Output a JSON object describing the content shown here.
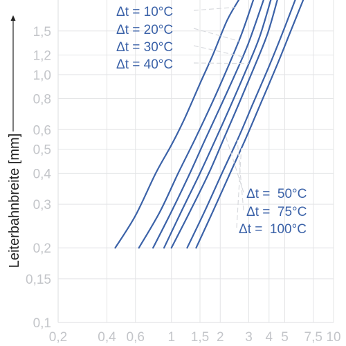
{
  "chart_data": {
    "type": "line",
    "title": "",
    "xlabel": "",
    "ylabel": "Leiterbahnbreite [mm]",
    "x_scale": "log",
    "y_scale": "log",
    "xlim": [
      0.2,
      10
    ],
    "ylim": [
      0.1,
      2
    ],
    "grid": true,
    "x_ticks": [
      {
        "value": 0.2,
        "label": "0,2"
      },
      {
        "value": 0.4,
        "label": "0,4"
      },
      {
        "value": 0.6,
        "label": "0,6"
      },
      {
        "value": 1,
        "label": "1"
      },
      {
        "value": 1.5,
        "label": "1,5"
      },
      {
        "value": 2,
        "label": "2"
      },
      {
        "value": 3,
        "label": "3"
      },
      {
        "value": 4,
        "label": "4"
      },
      {
        "value": 5,
        "label": "5"
      },
      {
        "value": 7.5,
        "label": "7,5"
      },
      {
        "value": 10,
        "label": "10"
      }
    ],
    "y_ticks": [
      {
        "value": 0.1,
        "label": "0,1"
      },
      {
        "value": 0.15,
        "label": "0,15"
      },
      {
        "value": 0.2,
        "label": "0,2"
      },
      {
        "value": 0.3,
        "label": "0,3"
      },
      {
        "value": 0.4,
        "label": "0,4"
      },
      {
        "value": 0.5,
        "label": "0,5"
      },
      {
        "value": 0.6,
        "label": "0,6"
      },
      {
        "value": 0.8,
        "label": "0,8"
      },
      {
        "value": 1.0,
        "label": "1,0"
      },
      {
        "value": 1.2,
        "label": "1,2"
      },
      {
        "value": 1.5,
        "label": "1,5"
      }
    ],
    "series": [
      {
        "label": "Δt = 10°C",
        "points": [
          [
            0.45,
            0.2
          ],
          [
            0.6,
            0.27
          ],
          [
            0.8,
            0.4
          ],
          [
            1.0,
            0.52
          ],
          [
            1.2,
            0.66
          ],
          [
            1.5,
            0.92
          ],
          [
            1.8,
            1.2
          ],
          [
            2.2,
            1.65
          ],
          [
            2.6,
            2.0
          ]
        ]
      },
      {
        "label": "Δt = 20°C",
        "points": [
          [
            0.63,
            0.2
          ],
          [
            0.85,
            0.28
          ],
          [
            1.1,
            0.4
          ],
          [
            1.4,
            0.55
          ],
          [
            1.8,
            0.78
          ],
          [
            2.2,
            1.05
          ],
          [
            2.7,
            1.45
          ],
          [
            3.2,
            2.0
          ]
        ]
      },
      {
        "label": "Δt = 30°C",
        "points": [
          [
            0.77,
            0.2
          ],
          [
            1.0,
            0.28
          ],
          [
            1.3,
            0.4
          ],
          [
            1.6,
            0.54
          ],
          [
            2.0,
            0.74
          ],
          [
            2.5,
            1.02
          ],
          [
            3.0,
            1.35
          ],
          [
            3.7,
            2.0
          ]
        ]
      },
      {
        "label": "Δt = 40°C",
        "points": [
          [
            0.9,
            0.2
          ],
          [
            1.15,
            0.28
          ],
          [
            1.5,
            0.4
          ],
          [
            1.9,
            0.56
          ],
          [
            2.3,
            0.74
          ],
          [
            2.9,
            1.05
          ],
          [
            3.5,
            1.42
          ],
          [
            4.1,
            2.0
          ]
        ]
      },
      {
        "label": "Δt = 50°C",
        "points": [
          [
            1.0,
            0.2
          ],
          [
            1.3,
            0.28
          ],
          [
            1.7,
            0.4
          ],
          [
            2.1,
            0.55
          ],
          [
            2.6,
            0.76
          ],
          [
            3.2,
            1.05
          ],
          [
            3.9,
            1.45
          ],
          [
            4.5,
            2.0
          ]
        ]
      },
      {
        "label": "Δt = 75°C",
        "points": [
          [
            1.25,
            0.2
          ],
          [
            1.6,
            0.28
          ],
          [
            2.05,
            0.4
          ],
          [
            2.6,
            0.56
          ],
          [
            3.2,
            0.77
          ],
          [
            4.0,
            1.08
          ],
          [
            4.8,
            1.45
          ],
          [
            5.8,
            2.0
          ]
        ]
      },
      {
        "label": "Δt = 100°C",
        "points": [
          [
            1.42,
            0.2
          ],
          [
            1.8,
            0.28
          ],
          [
            2.3,
            0.4
          ],
          [
            2.9,
            0.56
          ],
          [
            3.6,
            0.78
          ],
          [
            4.5,
            1.1
          ],
          [
            5.4,
            1.48
          ],
          [
            6.5,
            2.0
          ]
        ]
      }
    ],
    "annotations": [
      {
        "text": "Δt = 10°C",
        "series_index": 0
      },
      {
        "text": "Δt = 20°C",
        "series_index": 1
      },
      {
        "text": "Δt = 30°C",
        "series_index": 2
      },
      {
        "text": "Δt = 40°C",
        "series_index": 3
      },
      {
        "text": "Δt =  50°C",
        "series_index": 4
      },
      {
        "text": "Δt =  75°C",
        "series_index": 5
      },
      {
        "text": "Δt =  100°C",
        "series_index": 6
      }
    ],
    "colors": {
      "line": "#3b62a8",
      "grid": "#e3e4e6",
      "tick_text": "#c3c5c9",
      "ylabel": "#222222",
      "leader": "#d8dade"
    }
  }
}
